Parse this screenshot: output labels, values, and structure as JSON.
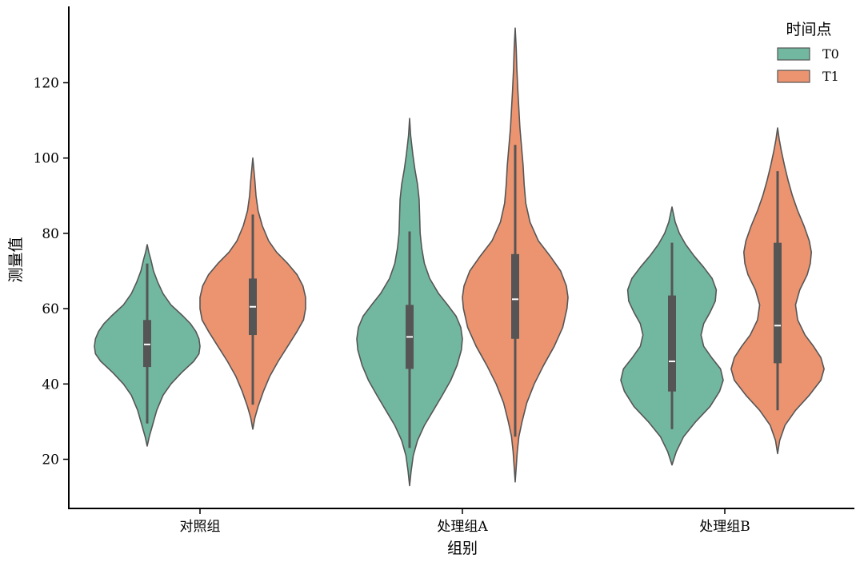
{
  "chart_data": {
    "type": "violin",
    "xlabel": "组别",
    "ylabel": "测量值",
    "categories": [
      "对照组",
      "处理组A",
      "处理组B"
    ],
    "yticks": [
      20,
      40,
      60,
      80,
      100,
      120
    ],
    "ylim": [
      7,
      140
    ],
    "grid": false,
    "legend": {
      "title": "时间点",
      "placement": "top-right",
      "entries": [
        "T0",
        "T1"
      ]
    },
    "series": [
      {
        "name": "T0",
        "color": "#72b8a1",
        "groups": [
          {
            "category": "对照组",
            "min": 23.5,
            "max": 77,
            "whisker_low": 29.5,
            "q1": 44.5,
            "median": 50.5,
            "q3": 57,
            "whisker_high": 72,
            "density": [
              [
                23.5,
                0
              ],
              [
                26,
                0.04
              ],
              [
                29,
                0.1
              ],
              [
                33,
                0.18
              ],
              [
                37,
                0.3
              ],
              [
                40,
                0.45
              ],
              [
                43,
                0.65
              ],
              [
                46,
                0.88
              ],
              [
                48,
                0.98
              ],
              [
                50,
                1.0
              ],
              [
                52,
                0.98
              ],
              [
                54,
                0.92
              ],
              [
                56,
                0.82
              ],
              [
                58,
                0.68
              ],
              [
                61,
                0.45
              ],
              [
                64,
                0.3
              ],
              [
                67,
                0.2
              ],
              [
                70,
                0.12
              ],
              [
                73,
                0.07
              ],
              [
                75,
                0.03
              ],
              [
                77,
                0
              ]
            ]
          },
          {
            "category": "处理组A",
            "min": 13,
            "max": 110.5,
            "whisker_low": 23,
            "q1": 44,
            "median": 52.5,
            "q3": 61,
            "whisker_high": 80.5,
            "density": [
              [
                13,
                0
              ],
              [
                17,
                0.03
              ],
              [
                21,
                0.07
              ],
              [
                25,
                0.15
              ],
              [
                29,
                0.28
              ],
              [
                33,
                0.45
              ],
              [
                37,
                0.62
              ],
              [
                41,
                0.78
              ],
              [
                45,
                0.9
              ],
              [
                49,
                0.98
              ],
              [
                52,
                1.0
              ],
              [
                55,
                0.97
              ],
              [
                58,
                0.88
              ],
              [
                61,
                0.72
              ],
              [
                64,
                0.55
              ],
              [
                68,
                0.38
              ],
              [
                72,
                0.28
              ],
              [
                76,
                0.23
              ],
              [
                80,
                0.2
              ],
              [
                85,
                0.19
              ],
              [
                89,
                0.18
              ],
              [
                93,
                0.15
              ],
              [
                97,
                0.1
              ],
              [
                101,
                0.06
              ],
              [
                106,
                0.02
              ],
              [
                110.5,
                0
              ]
            ]
          },
          {
            "category": "处理组B",
            "min": 18.5,
            "max": 87,
            "whisker_low": 28,
            "q1": 38,
            "median": 46,
            "q3": 63.5,
            "whisker_high": 77.5,
            "density": [
              [
                18.5,
                0
              ],
              [
                22,
                0.08
              ],
              [
                26,
                0.22
              ],
              [
                30,
                0.45
              ],
              [
                34,
                0.72
              ],
              [
                38,
                0.9
              ],
              [
                41,
                0.97
              ],
              [
                44,
                0.92
              ],
              [
                47,
                0.75
              ],
              [
                50,
                0.6
              ],
              [
                53,
                0.55
              ],
              [
                56,
                0.6
              ],
              [
                59,
                0.72
              ],
              [
                62,
                0.82
              ],
              [
                65,
                0.84
              ],
              [
                68,
                0.76
              ],
              [
                71,
                0.6
              ],
              [
                74,
                0.42
              ],
              [
                77,
                0.26
              ],
              [
                80,
                0.14
              ],
              [
                83,
                0.06
              ],
              [
                87,
                0
              ]
            ]
          }
        ]
      },
      {
        "name": "T1",
        "color": "#ec9470",
        "groups": [
          {
            "category": "对照组",
            "min": 28,
            "max": 100,
            "whisker_low": 34.5,
            "q1": 53,
            "median": 60.5,
            "q3": 68,
            "whisker_high": 85,
            "density": [
              [
                28,
                0
              ],
              [
                31,
                0.04
              ],
              [
                34,
                0.1
              ],
              [
                38,
                0.2
              ],
              [
                42,
                0.32
              ],
              [
                46,
                0.48
              ],
              [
                50,
                0.66
              ],
              [
                54,
                0.84
              ],
              [
                57,
                0.96
              ],
              [
                60,
                1.0
              ],
              [
                63,
                1.0
              ],
              [
                66,
                0.95
              ],
              [
                69,
                0.84
              ],
              [
                72,
                0.66
              ],
              [
                75,
                0.45
              ],
              [
                78,
                0.3
              ],
              [
                82,
                0.18
              ],
              [
                86,
                0.1
              ],
              [
                90,
                0.06
              ],
              [
                94,
                0.04
              ],
              [
                97,
                0.02
              ],
              [
                100,
                0
              ]
            ]
          },
          {
            "category": "处理组A",
            "min": 14,
            "max": 134.5,
            "whisker_low": 26,
            "q1": 52,
            "median": 62.5,
            "q3": 74.5,
            "whisker_high": 103.5,
            "density": [
              [
                14,
                0
              ],
              [
                18,
                0.02
              ],
              [
                22,
                0.04
              ],
              [
                26,
                0.07
              ],
              [
                30,
                0.13
              ],
              [
                35,
                0.22
              ],
              [
                40,
                0.36
              ],
              [
                45,
                0.54
              ],
              [
                50,
                0.74
              ],
              [
                55,
                0.9
              ],
              [
                60,
                0.98
              ],
              [
                63,
                1.0
              ],
              [
                66,
                0.97
              ],
              [
                70,
                0.86
              ],
              [
                74,
                0.66
              ],
              [
                78,
                0.44
              ],
              [
                83,
                0.28
              ],
              [
                88,
                0.2
              ],
              [
                93,
                0.17
              ],
              [
                98,
                0.15
              ],
              [
                103,
                0.12
              ],
              [
                108,
                0.09
              ],
              [
                113,
                0.07
              ],
              [
                118,
                0.05
              ],
              [
                124,
                0.03
              ],
              [
                129,
                0.02
              ],
              [
                134.5,
                0
              ]
            ]
          },
          {
            "category": "处理组B",
            "min": 21.5,
            "max": 108,
            "whisker_low": 33,
            "q1": 45.5,
            "median": 55.5,
            "q3": 77.5,
            "whisker_high": 96.5,
            "density": [
              [
                21.5,
                0
              ],
              [
                25,
                0.04
              ],
              [
                29,
                0.14
              ],
              [
                33,
                0.34
              ],
              [
                37,
                0.6
              ],
              [
                41,
                0.82
              ],
              [
                44,
                0.88
              ],
              [
                47,
                0.82
              ],
              [
                50,
                0.68
              ],
              [
                53,
                0.52
              ],
              [
                57,
                0.38
              ],
              [
                61,
                0.34
              ],
              [
                65,
                0.42
              ],
              [
                69,
                0.56
              ],
              [
                72,
                0.62
              ],
              [
                75,
                0.64
              ],
              [
                78,
                0.6
              ],
              [
                82,
                0.5
              ],
              [
                86,
                0.38
              ],
              [
                90,
                0.28
              ],
              [
                94,
                0.2
              ],
              [
                98,
                0.13
              ],
              [
                102,
                0.07
              ],
              [
                105,
                0.03
              ],
              [
                108,
                0
              ]
            ]
          }
        ]
      }
    ]
  }
}
